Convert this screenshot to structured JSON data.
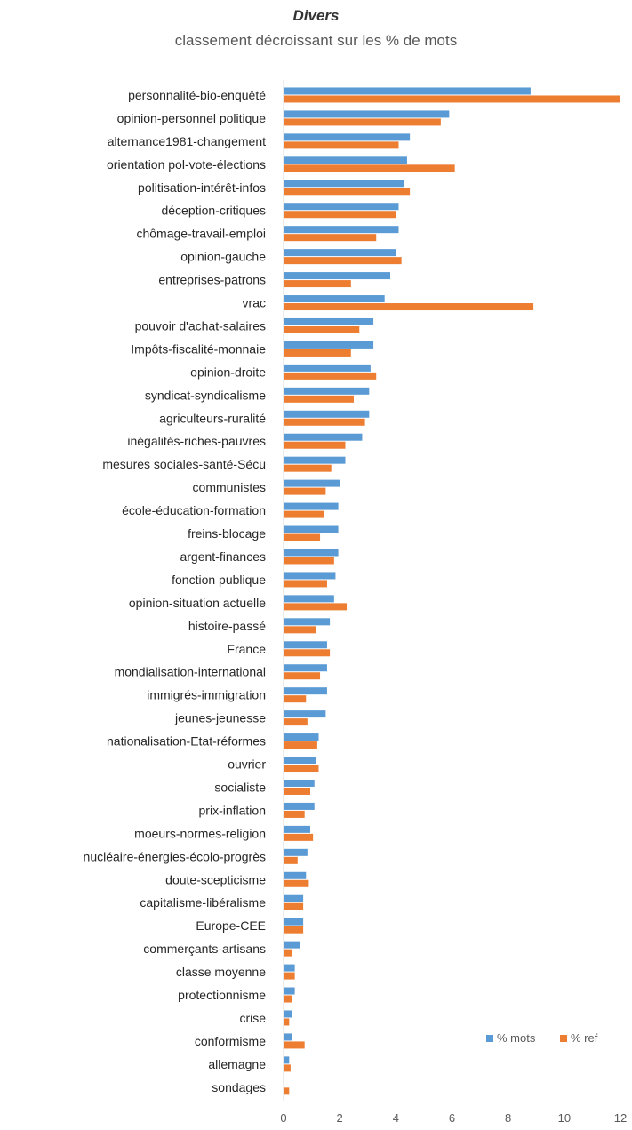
{
  "chart_data": {
    "type": "bar",
    "orientation": "horizontal",
    "title": "Divers",
    "subtitle": "classement décroissant sur les % de mots",
    "xlabel": "",
    "ylabel": "",
    "xlim": [
      0,
      12
    ],
    "xticks": [
      0,
      2,
      4,
      6,
      8,
      10,
      12
    ],
    "grid": false,
    "legend_position": "bottom-right",
    "categories": [
      "personnalité-bio-enquêté",
      "opinion-personnel politique",
      "alternance1981-changement",
      "orientation pol-vote-élections",
      "politisation-intérêt-infos",
      "déception-critiques",
      "chômage-travail-emploi",
      "opinion-gauche",
      "entreprises-patrons",
      "vrac",
      "pouvoir d'achat-salaires",
      "Impôts-fiscalité-monnaie",
      "opinion-droite",
      "syndicat-syndicalisme",
      "agriculteurs-ruralité",
      "inégalités-riches-pauvres",
      "mesures sociales-santé-Sécu",
      "communistes",
      "école-éducation-formation",
      "freins-blocage",
      "argent-finances",
      "fonction publique",
      "opinion-situation actuelle",
      "histoire-passé",
      "France",
      "mondialisation-international",
      "immigrés-immigration",
      "jeunes-jeunesse",
      "nationalisation-Etat-réformes",
      "ouvrier",
      "socialiste",
      "prix-inflation",
      "moeurs-normes-religion",
      "nucléaire-énergies-écolo-progrès",
      "doute-scepticisme",
      "capitalisme-libéralisme",
      "Europe-CEE",
      "commerçants-artisans",
      "classe moyenne",
      "protectionnisme",
      "crise",
      "conformisme",
      "allemagne",
      "sondages"
    ],
    "series": [
      {
        "name": "% mots",
        "color": "#5B9BD5",
        "values": [
          8.8,
          5.9,
          4.5,
          4.4,
          4.3,
          4.1,
          4.1,
          4.0,
          3.8,
          3.6,
          3.2,
          3.2,
          3.1,
          3.05,
          3.05,
          2.8,
          2.2,
          2.0,
          1.95,
          1.95,
          1.95,
          1.85,
          1.8,
          1.65,
          1.55,
          1.55,
          1.55,
          1.5,
          1.25,
          1.15,
          1.1,
          1.1,
          0.95,
          0.85,
          0.8,
          0.7,
          0.7,
          0.6,
          0.4,
          0.4,
          0.3,
          0.3,
          0.2,
          0.0
        ]
      },
      {
        "name": "% ref",
        "color": "#ED7D31",
        "values": [
          12.0,
          5.6,
          4.1,
          6.1,
          4.5,
          4.0,
          3.3,
          4.2,
          2.4,
          8.9,
          2.7,
          2.4,
          3.3,
          2.5,
          2.9,
          2.2,
          1.7,
          1.5,
          1.45,
          1.3,
          1.8,
          1.55,
          2.25,
          1.15,
          1.65,
          1.3,
          0.8,
          0.85,
          1.2,
          1.25,
          0.95,
          0.75,
          1.05,
          0.5,
          0.9,
          0.7,
          0.7,
          0.3,
          0.4,
          0.3,
          0.2,
          0.75,
          0.25,
          0.2
        ]
      }
    ]
  }
}
